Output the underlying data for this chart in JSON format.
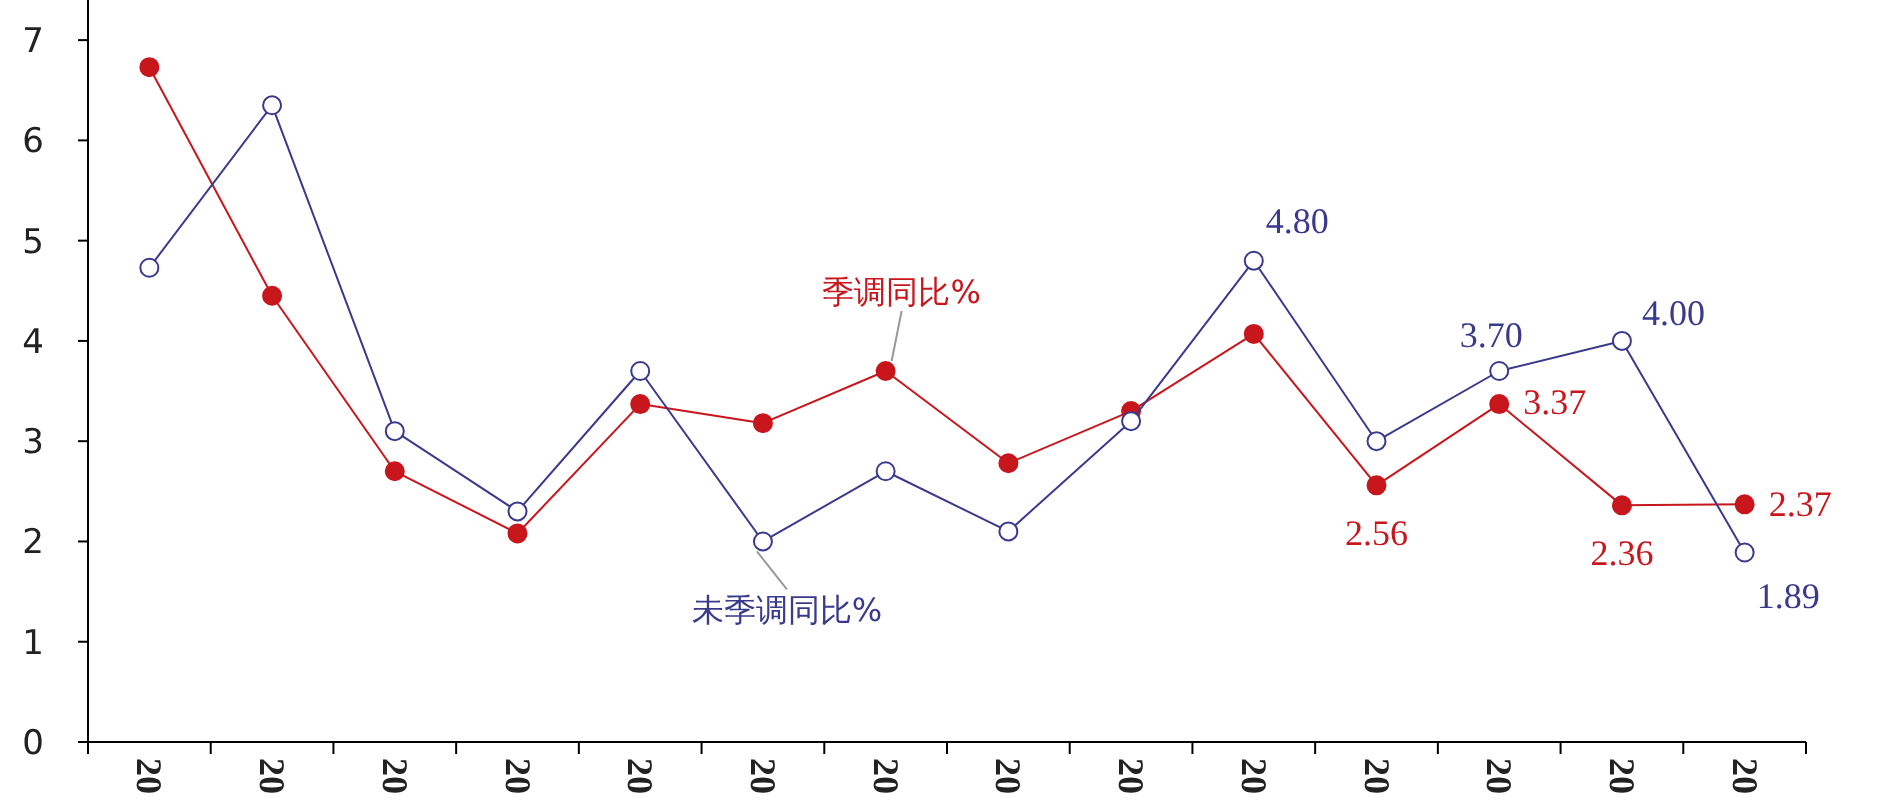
{
  "chart_data": {
    "type": "line",
    "categories": [
      "20",
      "20",
      "20",
      "20",
      "20",
      "20",
      "20",
      "20",
      "20",
      "20",
      "20",
      "20",
      "20",
      "20"
    ],
    "series": [
      {
        "name": "季调同比%",
        "color": "#c8161d",
        "values": [
          6.73,
          4.45,
          2.7,
          2.08,
          3.37,
          3.18,
          3.7,
          2.78,
          3.3,
          4.07,
          2.56,
          3.37,
          2.36,
          2.37
        ],
        "value_labels": [
          null,
          null,
          null,
          null,
          null,
          null,
          null,
          null,
          null,
          null,
          "2.56",
          "3.37",
          "2.36",
          "2.37"
        ]
      },
      {
        "name": "未季调同比%",
        "color": "#3a3a8c",
        "values": [
          4.73,
          6.35,
          3.1,
          2.3,
          3.7,
          2.0,
          2.7,
          2.1,
          3.2,
          4.8,
          3.0,
          3.7,
          4.0,
          1.89
        ],
        "value_labels": [
          null,
          null,
          null,
          null,
          null,
          null,
          null,
          null,
          null,
          "4.80",
          null,
          "3.70",
          "4.00",
          "1.89"
        ]
      }
    ],
    "ylim": [
      0,
      7.4
    ],
    "yticks": [
      0,
      1,
      2,
      3,
      4,
      5,
      6,
      7
    ],
    "marker": "circle",
    "legend": false,
    "grid": false
  }
}
